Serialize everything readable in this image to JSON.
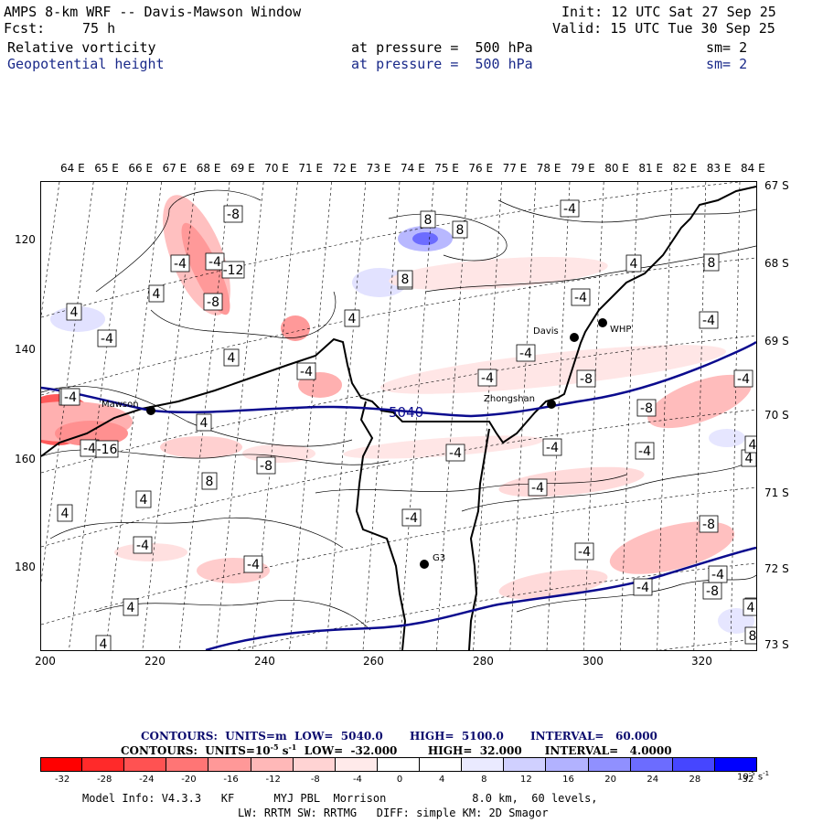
{
  "header": {
    "title": "AMPS 8-km WRF -- Davis-Mawson Window",
    "init": "Init: 12 UTC Sat 27 Sep 25",
    "fcst_label": "Fcst:",
    "fcst_value": "75 h",
    "valid": "Valid: 15 UTC Tue 30 Sep 25",
    "field1": "Relative vorticity",
    "field1_level": "at pressure =  500 hPa",
    "field1_sm": "sm= 2",
    "field2": "Geopotential height",
    "field2_level": "at pressure =  500 hPa",
    "field2_sm": "sm= 2"
  },
  "axes": {
    "lon_labels": [
      "64 E",
      "65 E",
      "66 E",
      "67 E",
      "68 E",
      "69 E",
      "70 E",
      "71 E",
      "72 E",
      "73 E",
      "74 E",
      "75 E",
      "76 E",
      "77 E",
      "78 E",
      "79 E",
      "80 E",
      "81 E",
      "82 E",
      "83 E",
      "84 E"
    ],
    "lat_labels": [
      "67 S",
      "68 S",
      "69 S",
      "70 S",
      "71 S",
      "72 S",
      "73 S"
    ],
    "x_ticks": [
      "200",
      "220",
      "240",
      "260",
      "280",
      "300",
      "320"
    ],
    "y_ticks": [
      "120",
      "140",
      "160",
      "180"
    ]
  },
  "stations": {
    "mawson": "Mawson",
    "davis": "Davis",
    "whp": "WHP",
    "zhongshan": "Zhongshan",
    "g3": "G3"
  },
  "height_label": "5040",
  "contour_labels": [
    "-8",
    "-4",
    "-12",
    "-8",
    "4",
    "-4",
    "8",
    "8",
    "4",
    "-4",
    "4",
    "8",
    "-4",
    "-4",
    "4",
    "-4",
    "4",
    "-4",
    "-4",
    "-4",
    "-16",
    "4",
    "8",
    "-8",
    "4",
    "-4",
    "-4",
    "-4",
    "-4",
    "4",
    "-4",
    "-4",
    "4",
    "-4",
    "-8",
    "-8",
    "4",
    "4",
    "8",
    "-4",
    "-8",
    "-4",
    "-4",
    "-4",
    "4",
    "-4",
    "4",
    "-4",
    "-8",
    "-4",
    "4",
    "4",
    "8"
  ],
  "contour_info": {
    "line1": "CONTOURS:  UNITS=m  LOW=  5040.0       HIGH=  5100.0       INTERVAL=   60.000",
    "line2": "CONTOURS:  UNITS=10",
    "line2_exp": "-5",
    "line2_rest": " s",
    "line2_exp2": "-1",
    "line2_tail": "  LOW=  -32.000        HIGH=  32.000      INTERVAL=   4.0000"
  },
  "colorbar": {
    "labels": [
      "-32",
      "-28",
      "-24",
      "-20",
      "-16",
      "-12",
      "-8",
      "-4",
      "0",
      "4",
      "8",
      "12",
      "16",
      "20",
      "24",
      "28",
      "32"
    ],
    "unit": "10",
    "unit_exp": "-5",
    "unit_rest": " s",
    "unit_exp2": "-1",
    "colors": [
      "#ff0000",
      "#ff2a2a",
      "#ff5252",
      "#ff7575",
      "#ff9898",
      "#ffb8b8",
      "#ffd3d3",
      "#ffeaea",
      "#ffffff",
      "#ffffff",
      "#eaeaff",
      "#d0d0ff",
      "#b2b2ff",
      "#9090ff",
      "#6c6cff",
      "#4646ff",
      "#0000ff"
    ]
  },
  "footer": {
    "line1": "Model Info: V4.3.3   KF      MYJ PBL  Morrison             8.0 km,  60 levels,",
    "line2": "LW: RRTM SW: RRTMG   DIFF: simple KM: 2D Smagor"
  }
}
